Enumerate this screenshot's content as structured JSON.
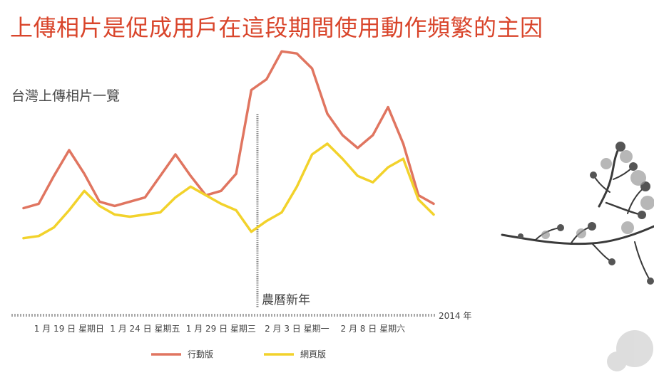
{
  "slide": {
    "title": "上傳相片是促成用戶在這段期間使用動作頻繁的主因"
  },
  "chart_data": {
    "type": "line",
    "title": "台灣上傳相片一覽",
    "x_count": 27,
    "xlim": [
      0,
      27
    ],
    "ylim": [
      0,
      100
    ],
    "x_tick_labels": [
      {
        "x": 3,
        "label": "1 月 19 日 星期日"
      },
      {
        "x": 8,
        "label": "1 月 24 日 星期五"
      },
      {
        "x": 13,
        "label": "1 月 29 日 星期三"
      },
      {
        "x": 18,
        "label": "2 月 3 日 星期一"
      },
      {
        "x": 23,
        "label": "2 月 8 日 星期六"
      }
    ],
    "axis_year_label": "2014 年",
    "annotation": {
      "x": 15.4,
      "label": "農曆新年"
    },
    "series": [
      {
        "name": "行動版",
        "color": "#e07560",
        "values": [
          30,
          32,
          45,
          57,
          46,
          33,
          31,
          33,
          35,
          45,
          55,
          45,
          36,
          38,
          46,
          85,
          90,
          103,
          102,
          95,
          74,
          64,
          58,
          64,
          77,
          60,
          36,
          32
        ]
      },
      {
        "name": "網頁版",
        "color": "#f2d22b",
        "values": [
          16,
          17,
          21,
          29,
          38,
          31,
          27,
          26,
          27,
          28,
          35,
          40,
          36,
          32,
          29,
          19,
          24,
          28,
          40,
          55,
          60,
          53,
          45,
          42,
          49,
          53,
          34,
          27
        ]
      }
    ]
  }
}
